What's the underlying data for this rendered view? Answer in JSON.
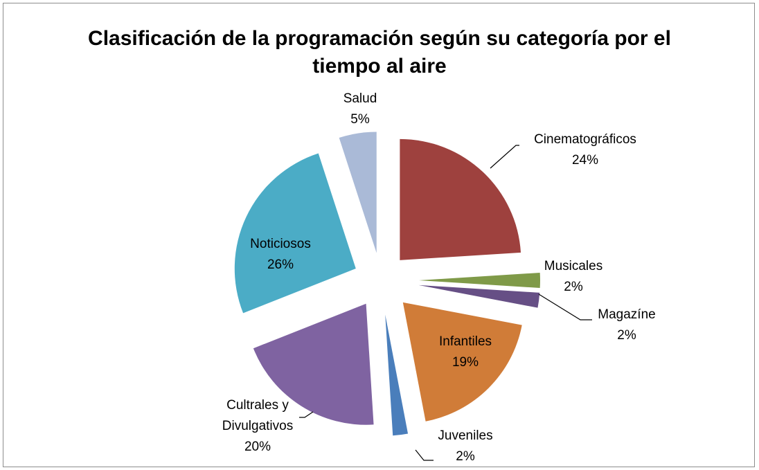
{
  "chart_data": {
    "type": "pie",
    "title": "Clasificación de la programación según su categoría por el tiempo al aire",
    "categories": [
      "Cinematográficos",
      "Musicales",
      "Magazíne",
      "Infantiles",
      "Juveniles",
      "Cultrales y Divulgativos",
      "Noticiosos",
      "Salud"
    ],
    "values": [
      24,
      2,
      2,
      19,
      2,
      20,
      26,
      5
    ],
    "value_labels": [
      "24%",
      "2%",
      "2%",
      "19%",
      "2%",
      "20%",
      "26%",
      "5%"
    ],
    "colors": [
      "#9e413e",
      "#7f9a48",
      "#664f85",
      "#d07c38",
      "#4a7ebb",
      "#7f63a1",
      "#4bacc6",
      "#aabad7"
    ]
  }
}
